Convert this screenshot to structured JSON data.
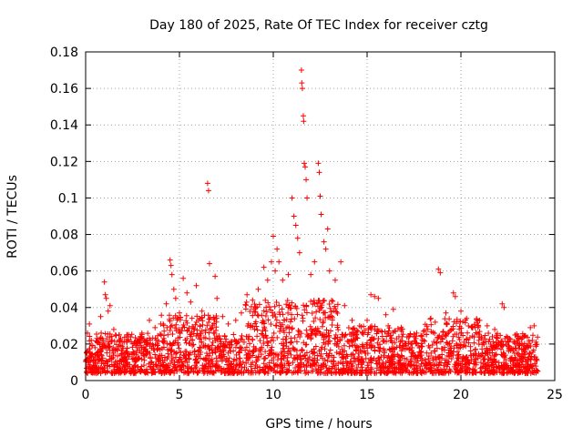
{
  "chart_data": {
    "type": "scatter",
    "title": "Day 180 of 2025, Rate Of TEC Index for receiver cztg",
    "xlabel": "GPS time / hours",
    "ylabel": "ROTI / TECUs",
    "xlim": [
      0,
      25
    ],
    "ylim": [
      0,
      0.18
    ],
    "xticks": [
      0,
      5,
      10,
      15,
      20,
      25
    ],
    "xtick_labels": [
      "0",
      "5",
      "10",
      "15",
      "20",
      "25"
    ],
    "yticks": [
      0,
      0.02,
      0.04,
      0.06,
      0.08,
      0.1,
      0.12,
      0.14,
      0.16,
      0.18
    ],
    "ytick_labels": [
      "0",
      "0.02",
      "0.04",
      "0.06",
      "0.08",
      "0.1",
      "0.12",
      "0.14",
      "0.16",
      "0.18"
    ],
    "grid": true,
    "marker": "+",
    "color": "#ff0000",
    "series": [
      {
        "name": "ROTI",
        "points": [
          [
            0.1,
            0.026
          ],
          [
            0.2,
            0.031
          ],
          [
            0.3,
            0.022
          ],
          [
            0.5,
            0.018
          ],
          [
            0.8,
            0.035
          ],
          [
            1.0,
            0.054
          ],
          [
            1.05,
            0.047
          ],
          [
            1.1,
            0.045
          ],
          [
            1.2,
            0.038
          ],
          [
            1.3,
            0.041
          ],
          [
            1.5,
            0.028
          ],
          [
            1.8,
            0.022
          ],
          [
            2.2,
            0.025
          ],
          [
            2.6,
            0.021
          ],
          [
            3.0,
            0.026
          ],
          [
            3.4,
            0.033
          ],
          [
            3.7,
            0.029
          ],
          [
            4.0,
            0.031
          ],
          [
            4.3,
            0.042
          ],
          [
            4.5,
            0.066
          ],
          [
            4.55,
            0.063
          ],
          [
            4.6,
            0.058
          ],
          [
            4.7,
            0.05
          ],
          [
            4.8,
            0.045
          ],
          [
            5.0,
            0.037
          ],
          [
            5.2,
            0.056
          ],
          [
            5.4,
            0.048
          ],
          [
            5.6,
            0.043
          ],
          [
            5.9,
            0.052
          ],
          [
            6.2,
            0.038
          ],
          [
            6.5,
            0.108
          ],
          [
            6.55,
            0.104
          ],
          [
            6.6,
            0.064
          ],
          [
            6.9,
            0.057
          ],
          [
            7.0,
            0.045
          ],
          [
            7.3,
            0.035
          ],
          [
            7.6,
            0.031
          ],
          [
            8.0,
            0.033
          ],
          [
            8.3,
            0.037
          ],
          [
            8.6,
            0.047
          ],
          [
            8.9,
            0.044
          ],
          [
            9.2,
            0.05
          ],
          [
            9.5,
            0.062
          ],
          [
            9.7,
            0.055
          ],
          [
            9.9,
            0.065
          ],
          [
            10.0,
            0.079
          ],
          [
            10.1,
            0.06
          ],
          [
            10.2,
            0.072
          ],
          [
            10.3,
            0.065
          ],
          [
            10.5,
            0.055
          ],
          [
            10.8,
            0.058
          ],
          [
            11.0,
            0.1
          ],
          [
            11.1,
            0.09
          ],
          [
            11.2,
            0.085
          ],
          [
            11.3,
            0.078
          ],
          [
            11.4,
            0.07
          ],
          [
            11.5,
            0.17
          ],
          [
            11.52,
            0.163
          ],
          [
            11.55,
            0.16
          ],
          [
            11.6,
            0.145
          ],
          [
            11.62,
            0.142
          ],
          [
            11.65,
            0.119
          ],
          [
            11.7,
            0.117
          ],
          [
            11.75,
            0.11
          ],
          [
            11.8,
            0.1
          ],
          [
            12.0,
            0.058
          ],
          [
            12.2,
            0.065
          ],
          [
            12.4,
            0.119
          ],
          [
            12.45,
            0.114
          ],
          [
            12.5,
            0.101
          ],
          [
            12.55,
            0.091
          ],
          [
            12.7,
            0.076
          ],
          [
            12.8,
            0.072
          ],
          [
            12.9,
            0.083
          ],
          [
            13.0,
            0.06
          ],
          [
            13.3,
            0.055
          ],
          [
            13.6,
            0.065
          ],
          [
            13.8,
            0.041
          ],
          [
            14.2,
            0.033
          ],
          [
            14.6,
            0.03
          ],
          [
            15.0,
            0.033
          ],
          [
            15.2,
            0.047
          ],
          [
            15.4,
            0.046
          ],
          [
            15.6,
            0.045
          ],
          [
            16.0,
            0.036
          ],
          [
            16.4,
            0.039
          ],
          [
            16.8,
            0.028
          ],
          [
            17.2,
            0.024
          ],
          [
            17.6,
            0.023
          ],
          [
            18.0,
            0.027
          ],
          [
            18.4,
            0.034
          ],
          [
            18.8,
            0.061
          ],
          [
            18.9,
            0.059
          ],
          [
            19.2,
            0.037
          ],
          [
            19.6,
            0.048
          ],
          [
            19.7,
            0.046
          ],
          [
            20.0,
            0.038
          ],
          [
            20.3,
            0.034
          ],
          [
            20.6,
            0.029
          ],
          [
            21.0,
            0.033
          ],
          [
            21.4,
            0.03
          ],
          [
            21.8,
            0.028
          ],
          [
            22.2,
            0.042
          ],
          [
            22.3,
            0.04
          ],
          [
            22.6,
            0.023
          ],
          [
            23.0,
            0.022
          ],
          [
            23.4,
            0.019
          ],
          [
            23.7,
            0.029
          ],
          [
            23.9,
            0.03
          ],
          [
            24.0,
            0.021
          ]
        ]
      }
    ]
  }
}
